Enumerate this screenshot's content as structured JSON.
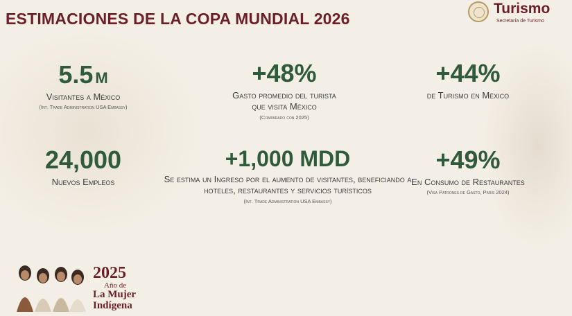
{
  "title": "ESTIMACIONES DE LA COPA MUNDIAL 2026",
  "logo": {
    "name": "Turismo",
    "subtitle": "Secretaría de Turismo",
    "icon": "coat-of-arms-seal"
  },
  "stats": [
    {
      "value": "5.5",
      "unit": "M",
      "label_lines": [
        "Visitantes a México"
      ],
      "source": "(Int. Trade Administration USA Embassy)"
    },
    {
      "value": "+48%",
      "label_lines": [
        "Gasto promedio del turista",
        "que visita México"
      ],
      "source": "(Comparado con 2025)"
    },
    {
      "value": "+44%",
      "label_lines": [
        "de Turismo en México"
      ],
      "source": ""
    },
    {
      "value": "24,000",
      "label_lines": [
        "Nuevos Empleos"
      ],
      "source": ""
    },
    {
      "value": "+1,000 MDD",
      "label_lines": [
        "Se estima un Ingreso por el aumento de visitantes, beneficiando a hoteles, restaurantes y servicios turísticos"
      ],
      "source": "(Int. Trade Administration USA Embassy)"
    },
    {
      "value": "+49%",
      "label_lines": [
        "En Consumo de Restaurantes"
      ],
      "source": "(Visa Patrones de Gasto, París 2024)"
    }
  ],
  "badge": {
    "year": "2025",
    "line1": "Año de",
    "line2": "La Mujer",
    "line3": "Indígena",
    "image": "indigenous-women-illustration"
  },
  "colors": {
    "title": "#6b1f2a",
    "numbers": "#2f5a3b",
    "background": "#f4efe6",
    "text": "#3b3b3b"
  }
}
